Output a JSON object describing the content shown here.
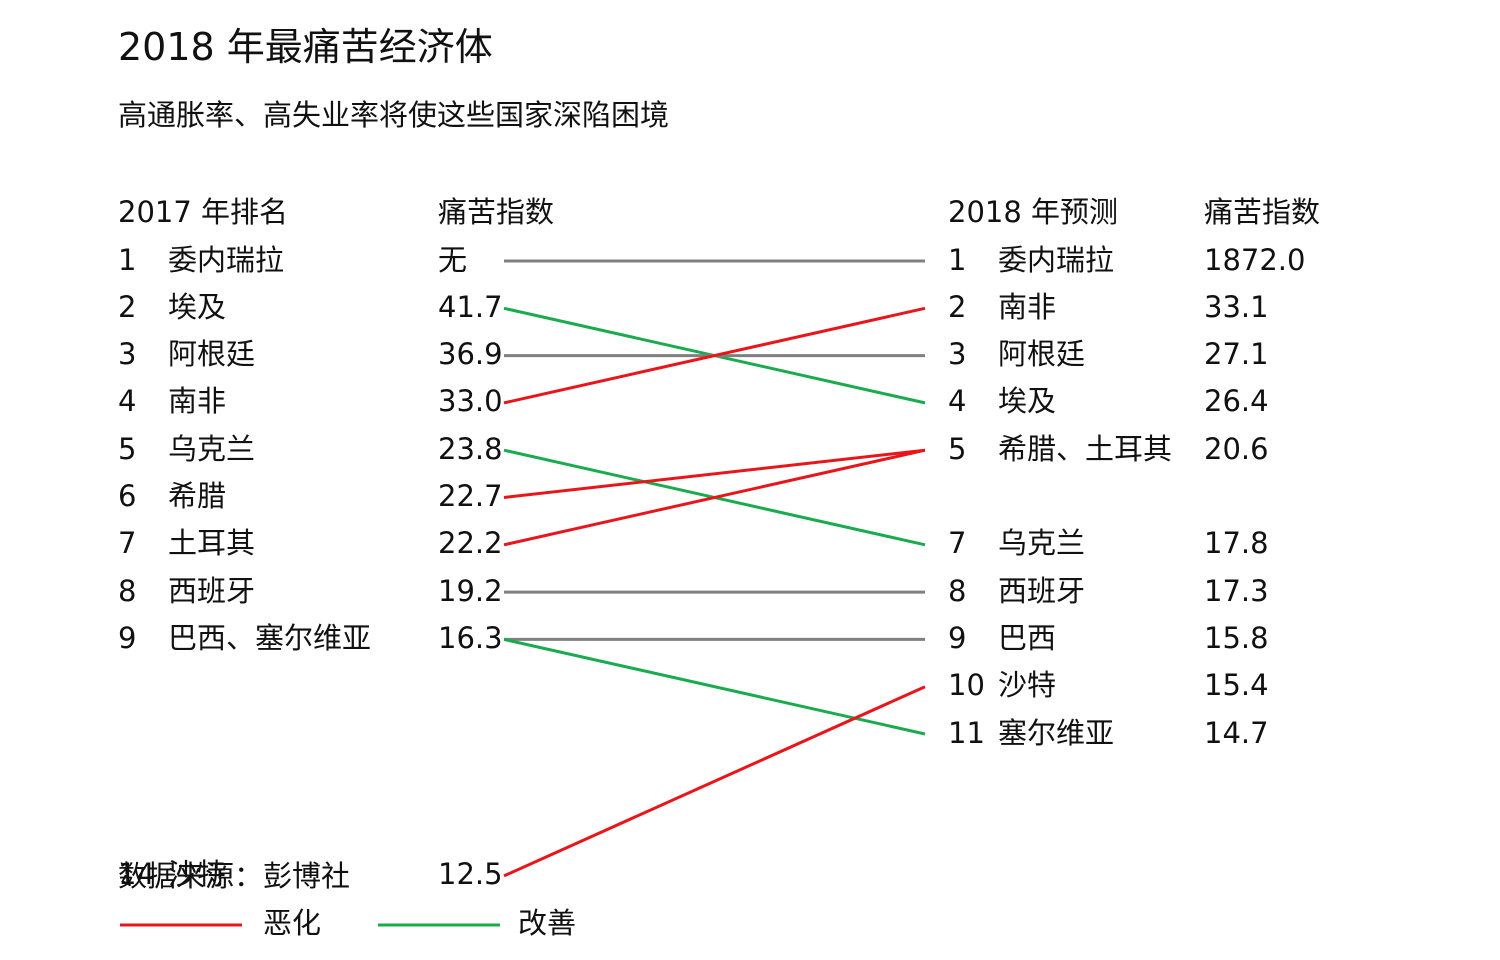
{
  "title": "2018 年最痛苦经济体",
  "subtitle": "高通胀率、高失业率将使这些国家深陷困境",
  "source": "数据来源：彭博社",
  "headers": {
    "left_rank": "2017 年排名",
    "left_index": "痛苦指数",
    "right_rank": "2018 年预测",
    "right_index": "痛苦指数"
  },
  "legend": {
    "worse": {
      "label": "恶化",
      "color": "#e8161b"
    },
    "better": {
      "label": "改善",
      "color": "#1aab4f"
    }
  },
  "neutral_color": "#808080",
  "chart_data": {
    "type": "slope",
    "title": "2018 年最痛苦经济体",
    "subtitle": "高通胀率、高失业率将使这些国家深陷困境",
    "left_column": [
      {
        "rank": "1",
        "name": "委内瑞拉",
        "value": "无"
      },
      {
        "rank": "2",
        "name": "埃及",
        "value": "41.7"
      },
      {
        "rank": "3",
        "name": "阿根廷",
        "value": "36.9"
      },
      {
        "rank": "4",
        "name": "南非",
        "value": "33.0"
      },
      {
        "rank": "5",
        "name": "乌克兰",
        "value": "23.8"
      },
      {
        "rank": "6",
        "name": "希腊",
        "value": "22.7"
      },
      {
        "rank": "7",
        "name": "土耳其",
        "value": "22.2"
      },
      {
        "rank": "8",
        "name": "西班牙",
        "value": "19.2"
      },
      {
        "rank": "9",
        "name": "巴西、塞尔维亚",
        "value": "16.3"
      },
      {
        "rank": "14",
        "name": "沙特",
        "value": "12.5"
      }
    ],
    "right_column": [
      {
        "rank": "1",
        "name": "委内瑞拉",
        "value": "1872.0"
      },
      {
        "rank": "2",
        "name": "南非",
        "value": "33.1"
      },
      {
        "rank": "3",
        "name": "阿根廷",
        "value": "27.1"
      },
      {
        "rank": "4",
        "name": "埃及",
        "value": "26.4"
      },
      {
        "rank": "5",
        "name": "希腊、土耳其",
        "value": "20.6"
      },
      {
        "rank": "7",
        "name": "乌克兰",
        "value": "17.8"
      },
      {
        "rank": "8",
        "name": "西班牙",
        "value": "17.3"
      },
      {
        "rank": "9",
        "name": "巴西",
        "value": "15.8"
      },
      {
        "rank": "10",
        "name": "沙特",
        "value": "15.4"
      },
      {
        "rank": "11",
        "name": "塞尔维亚",
        "value": "14.7"
      }
    ],
    "connections": [
      {
        "from_rank": 1,
        "to_rank": 1,
        "change": "same"
      },
      {
        "from_rank": 2,
        "to_rank": 4,
        "change": "better"
      },
      {
        "from_rank": 3,
        "to_rank": 3,
        "change": "same"
      },
      {
        "from_rank": 4,
        "to_rank": 2,
        "change": "worse"
      },
      {
        "from_rank": 5,
        "to_rank": 7,
        "change": "better"
      },
      {
        "from_rank": 6,
        "to_rank": 5,
        "change": "worse"
      },
      {
        "from_rank": 7,
        "to_rank": 5,
        "change": "worse"
      },
      {
        "from_rank": 8,
        "to_rank": 8,
        "change": "same"
      },
      {
        "from_rank": 9,
        "to_rank": 9,
        "change": "same"
      },
      {
        "from_rank": 9,
        "to_rank": 11,
        "change": "better"
      },
      {
        "from_rank": 14,
        "to_rank": 10,
        "change": "worse"
      }
    ]
  }
}
